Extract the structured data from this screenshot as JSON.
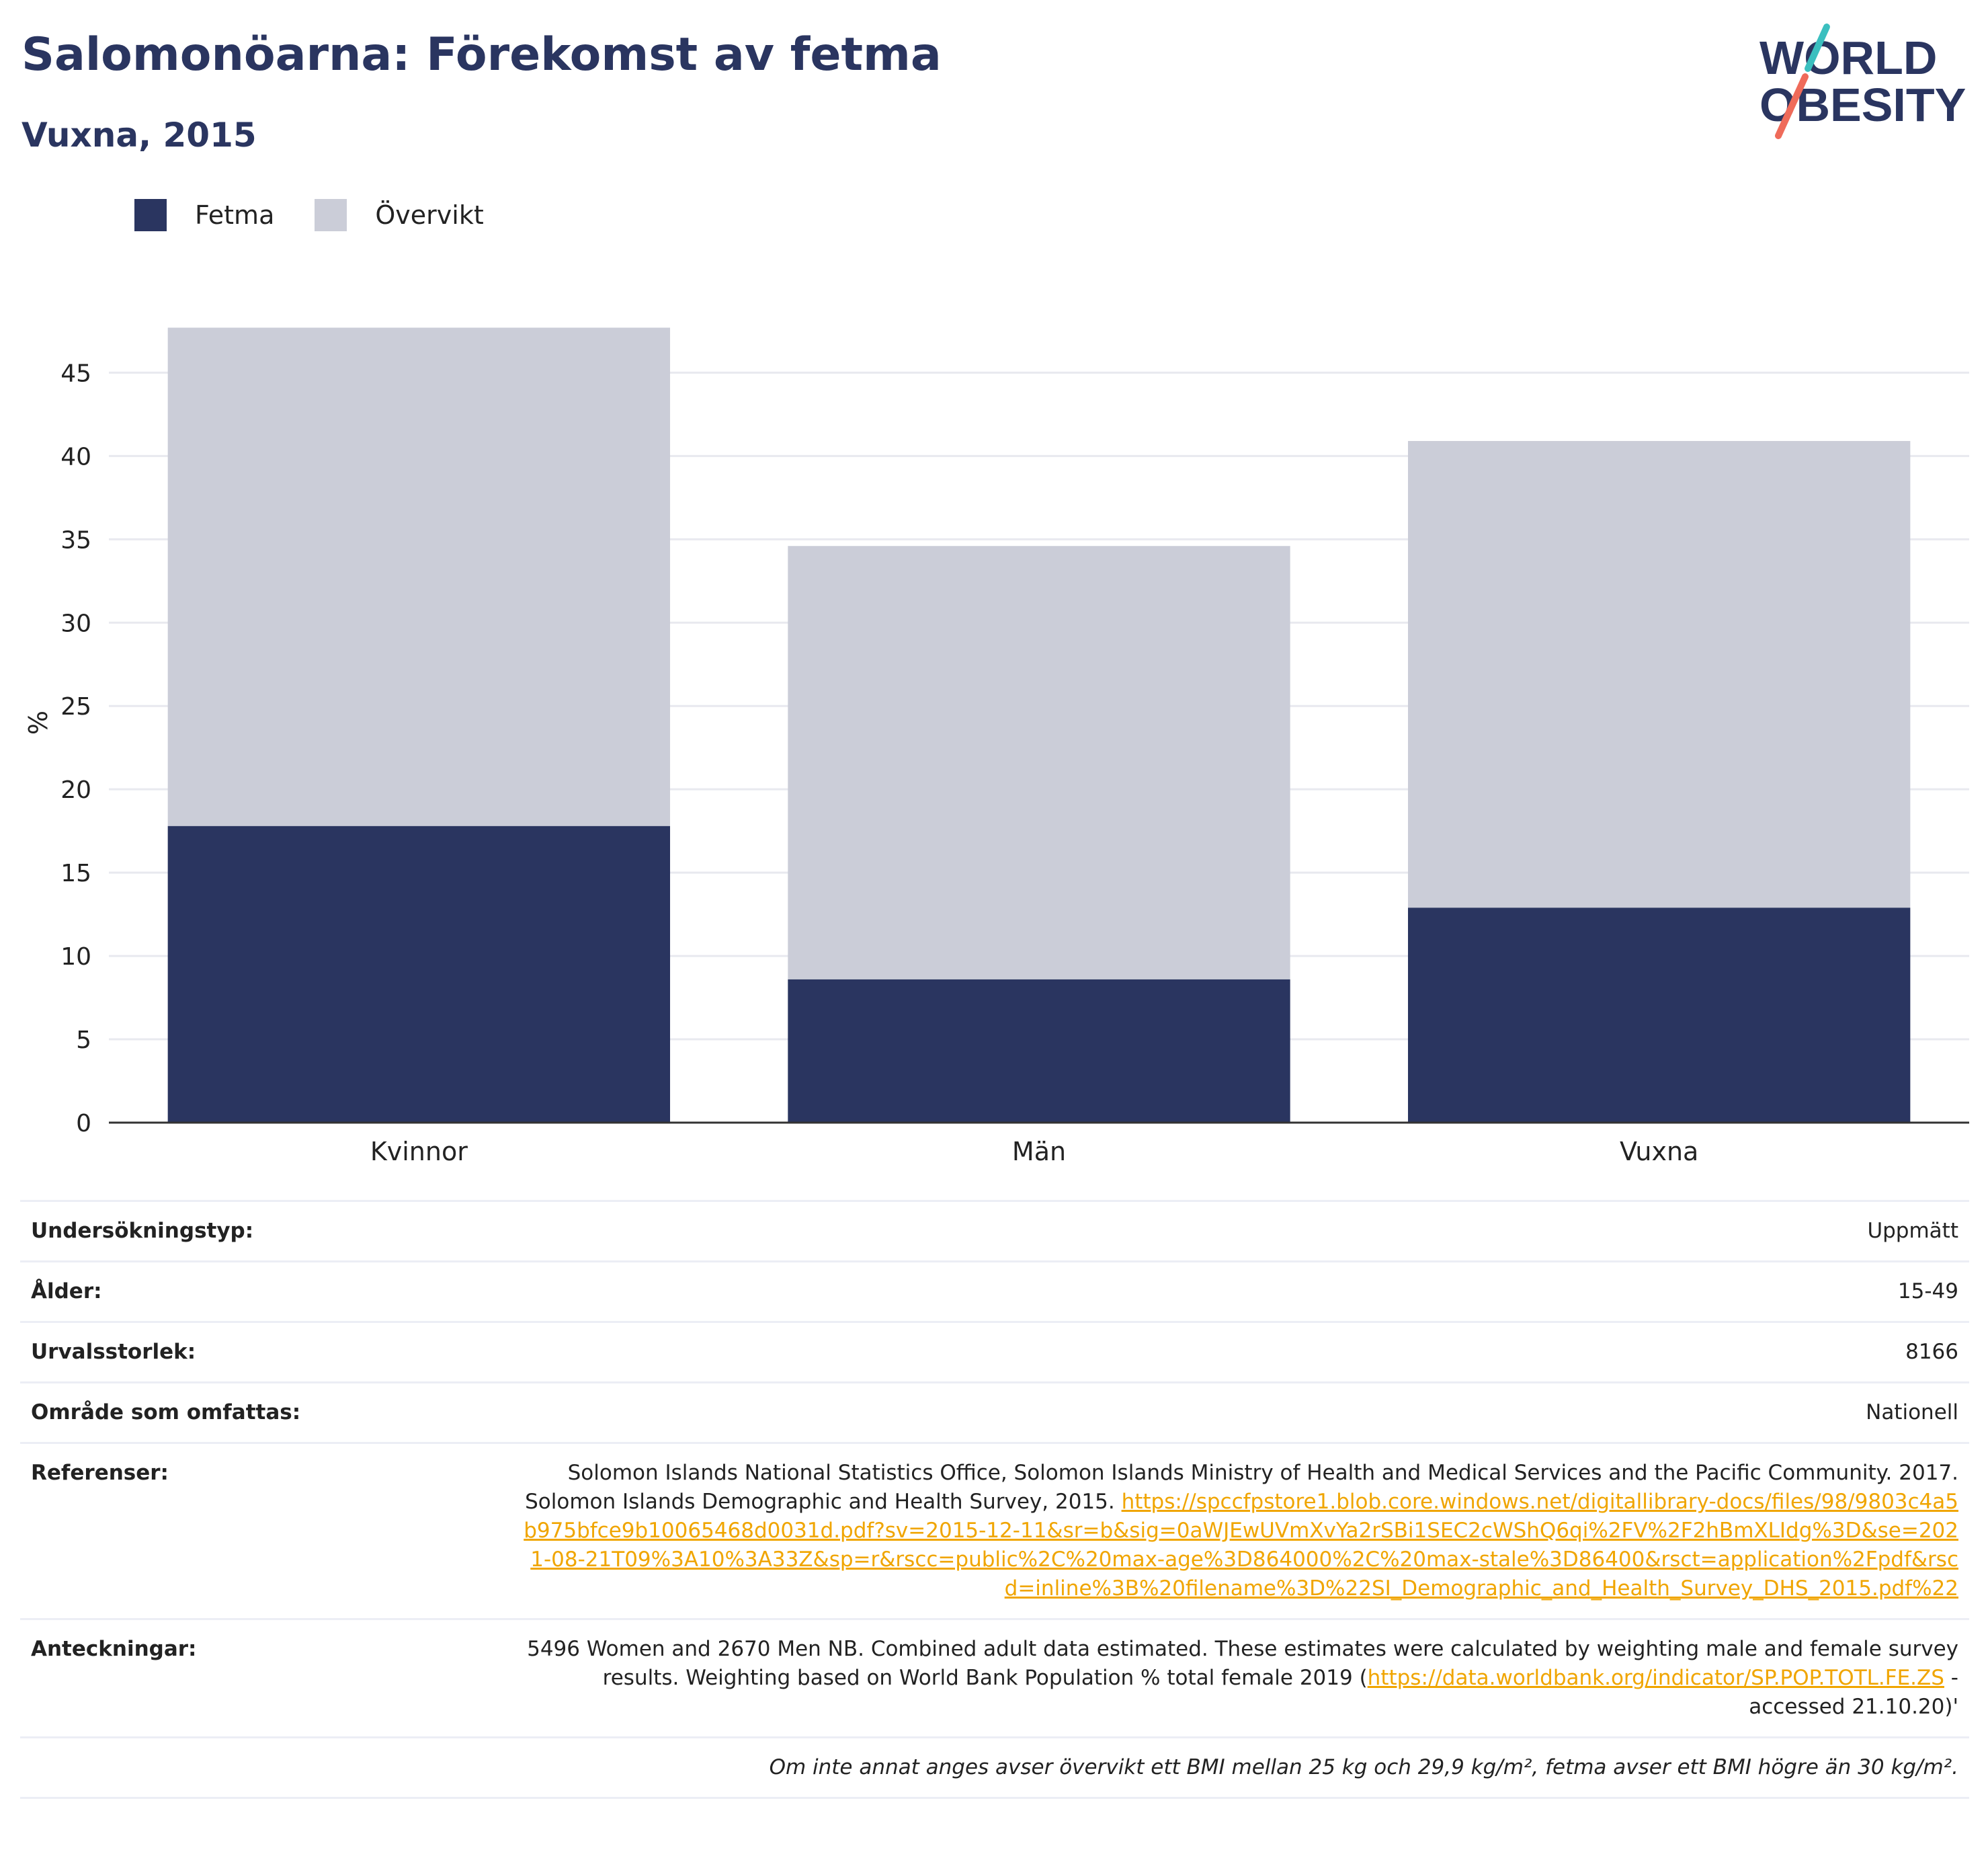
{
  "header": {
    "title": "Salomonöarna: Förekomst av fetma",
    "subtitle": "Vuxna, 2015"
  },
  "logo": {
    "line1": "WORLD",
    "line2": "OBESITY",
    "colors": {
      "navy": "#2a3560",
      "teal": "#3bbfbf",
      "coral": "#ef6b5a"
    }
  },
  "colors": {
    "fetma": "#2a3560",
    "overvikt": "#cbcdd8",
    "grid": "#e8e9ef",
    "axis": "#333333"
  },
  "chart_data": {
    "type": "bar",
    "stacked": true,
    "categories": [
      "Kvinnor",
      "Män",
      "Vuxna"
    ],
    "series": [
      {
        "name": "Fetma",
        "values": [
          17.8,
          8.6,
          12.9
        ]
      },
      {
        "name": "Övervikt",
        "values": [
          29.9,
          26.0,
          28.0
        ]
      }
    ],
    "ylabel": "%",
    "ylim": [
      0,
      48
    ],
    "yticks": [
      0,
      5,
      10,
      15,
      20,
      25,
      30,
      35,
      40,
      45
    ],
    "grid": true,
    "legend": "top-left"
  },
  "info": {
    "rows": [
      {
        "label": "Undersökningstyp:",
        "value": "Uppmätt"
      },
      {
        "label": "Ålder:",
        "value": "15-49"
      },
      {
        "label": "Urvalsstorlek:",
        "value": "8166"
      },
      {
        "label": "Område som omfattas:",
        "value": "Nationell"
      }
    ],
    "references": {
      "label": "Referenser:",
      "text": "Solomon Islands National Statistics Office, Solomon Islands Ministry of Health and Medical Services and the Pacific Community. 2017. Solomon Islands Demographic and Health Survey, 2015. ",
      "link": "https://spccfpstore1.blob.core.windows.net/digitallibrary-docs/files/98/9803c4a5b975bfce9b10065468d0031d.pdf?sv=2015-12-11&sr=b&sig=0aWJEwUVmXvYa2rSBi1SEC2cWShQ6qi%2FV%2F2hBmXLIdg%3D&se=2021-08-21T09%3A10%3A33Z&sp=r&rscc=public%2C%20max-age%3D864000%2C%20max-stale%3D86400&rsct=application%2Fpdf&rscd=inline%3B%20filename%3D%22SI_Demographic_and_Health_Survey_DHS_2015.pdf%22"
    },
    "notes": {
      "label": "Anteckningar:",
      "text_before": "5496 Women and 2670 Men NB. Combined adult data estimated. These estimates were calculated by weighting male and female survey results. Weighting based on World Bank Population % total female 2019 (",
      "link": "https://data.worldbank.org/indicator/SP.POP.TOTL.FE.ZS",
      "text_after": " - accessed 21.10.20)'"
    },
    "footnote": "Om inte annat anges avser övervikt ett BMI mellan 25 kg och 29,9 kg/m², fetma avser ett BMI högre än 30 kg/m²."
  }
}
